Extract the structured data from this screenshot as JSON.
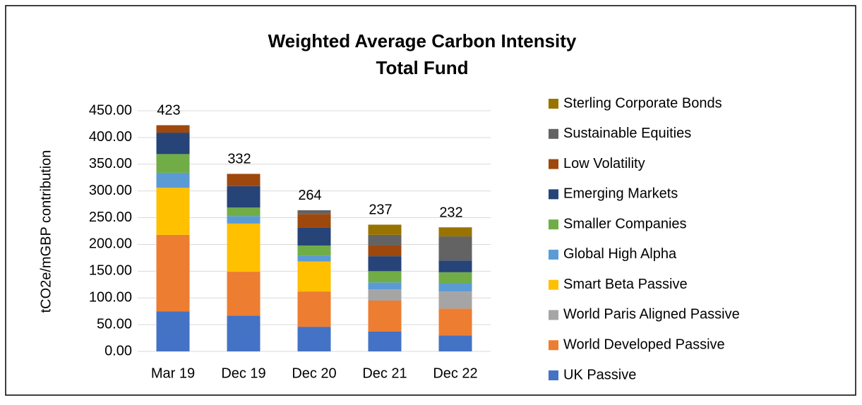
{
  "chart_data": {
    "type": "stacked_bar",
    "title": "Weighted Average Carbon Intensity",
    "subtitle": "Total Fund",
    "y_label": "tCO2e/mGBP contribution",
    "categories": [
      "Mar 19",
      "Dec 19",
      "Dec 20",
      "Dec 21",
      "Dec 22"
    ],
    "total_labels": [
      "423",
      "332",
      "264",
      "237",
      "232"
    ],
    "series": [
      {
        "name": "UK Passive",
        "color": "#4472c4",
        "values": [
          75,
          67,
          46,
          37,
          30
        ]
      },
      {
        "name": "World Developed Passive",
        "color": "#ed7d31",
        "values": [
          143,
          82,
          66,
          58,
          50
        ]
      },
      {
        "name": "World Paris Aligned Passive",
        "color": "#a5a5a5",
        "values": [
          0,
          0,
          0,
          21,
          32
        ]
      },
      {
        "name": "Smart Beta Passive",
        "color": "#ffc000",
        "values": [
          88,
          90,
          56,
          0,
          0
        ]
      },
      {
        "name": "Global High Alpha",
        "color": "#5b9bd5",
        "values": [
          28,
          14,
          11,
          13,
          16
        ]
      },
      {
        "name": "Smaller Companies",
        "color": "#70ad47",
        "values": [
          35,
          16,
          19,
          21,
          20
        ]
      },
      {
        "name": "Emerging Markets",
        "color": "#264478",
        "values": [
          40,
          40,
          34,
          28,
          22
        ]
      },
      {
        "name": "Low Volatility",
        "color": "#9e480e",
        "values": [
          14,
          23,
          25,
          20,
          0
        ]
      },
      {
        "name": "Sustainable Equities",
        "color": "#636363",
        "values": [
          0,
          0,
          7,
          20,
          45
        ]
      },
      {
        "name": "Sterling Corporate Bonds",
        "color": "#997300",
        "values": [
          0,
          0,
          0,
          19,
          17
        ]
      }
    ],
    "ylim": [
      0,
      450
    ],
    "yticks": [
      {
        "value": 0,
        "label": "0.00"
      },
      {
        "value": 50,
        "label": "50.00"
      },
      {
        "value": 100,
        "label": "100.00"
      },
      {
        "value": 150,
        "label": "150.00"
      },
      {
        "value": 200,
        "label": "200.00"
      },
      {
        "value": 250,
        "label": "250.00"
      },
      {
        "value": 300,
        "label": "300.00"
      },
      {
        "value": 350,
        "label": "350.00"
      },
      {
        "value": 400,
        "label": "400.00"
      },
      {
        "value": 450,
        "label": "450.00"
      }
    ],
    "grid": true,
    "legend": "right"
  }
}
